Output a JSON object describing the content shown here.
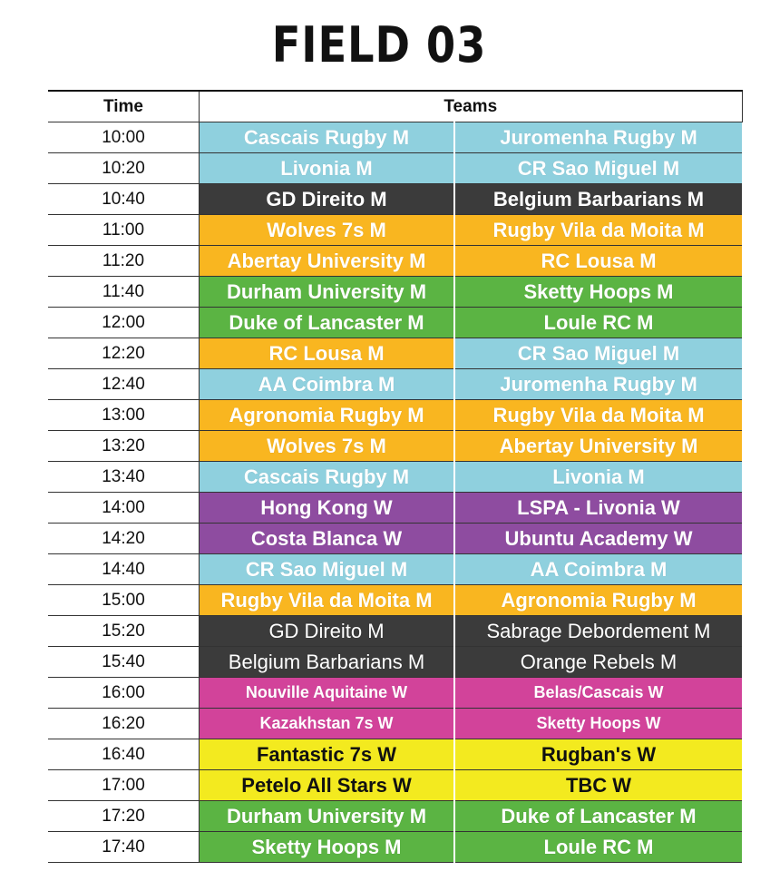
{
  "title": "FIELD 03",
  "headers": {
    "time": "Time",
    "teams": "Teams"
  },
  "colors": {
    "cyan": "#8fd0de",
    "dark": "#3b3b3b",
    "orange": "#f9b620",
    "green": "#5bb443",
    "purple": "#8e4ca0",
    "magenta": "#d2439a",
    "yellow": "#f3ea1f"
  },
  "rows": [
    {
      "time": "10:00",
      "team_a": "Cascais Rugby M",
      "team_b": "Juromenha Rugby M",
      "color": "cyan"
    },
    {
      "time": "10:20",
      "team_a": "Livonia M",
      "team_b": "CR Sao Miguel M",
      "color": "cyan"
    },
    {
      "time": "10:40",
      "team_a": "GD Direito M",
      "team_b": "Belgium Barbarians M",
      "color": "dark"
    },
    {
      "time": "11:00",
      "team_a": "Wolves 7s M",
      "team_b": "Rugby Vila da Moita M",
      "color": "orange"
    },
    {
      "time": "11:20",
      "team_a": "Abertay University M",
      "team_b": "RC Lousa M",
      "color": "orange"
    },
    {
      "time": "11:40",
      "team_a": "Durham University M",
      "team_b": "Sketty Hoops M",
      "color": "green"
    },
    {
      "time": "12:00",
      "team_a": "Duke of Lancaster M",
      "team_b": "Loule RC M",
      "color": "green"
    },
    {
      "time": "12:20",
      "team_a": "RC Lousa M",
      "team_b": "CR Sao Miguel M",
      "color": "orange",
      "color_b": "cyan"
    },
    {
      "time": "12:40",
      "team_a": "AA Coimbra M",
      "team_b": "Juromenha Rugby M",
      "color": "cyan"
    },
    {
      "time": "13:00",
      "team_a": "Agronomia Rugby M",
      "team_b": "Rugby Vila da Moita M",
      "color": "orange"
    },
    {
      "time": "13:20",
      "team_a": "Wolves 7s M",
      "team_b": "Abertay University M",
      "color": "orange"
    },
    {
      "time": "13:40",
      "team_a": "Cascais Rugby M",
      "team_b": "Livonia M",
      "color": "cyan"
    },
    {
      "time": "14:00",
      "team_a": "Hong Kong W",
      "team_b": "LSPA - Livonia W",
      "color": "purple"
    },
    {
      "time": "14:20",
      "team_a": "Costa Blanca W",
      "team_b": "Ubuntu Academy W",
      "color": "purple"
    },
    {
      "time": "14:40",
      "team_a": "CR Sao Miguel M",
      "team_b": "AA Coimbra M",
      "color": "cyan"
    },
    {
      "time": "15:00",
      "team_a": "Rugby Vila da Moita M",
      "team_b": "Agronomia Rugby M",
      "color": "orange"
    },
    {
      "time": "15:20",
      "team_a": "GD Direito M",
      "team_b": "Sabrage Debordement M",
      "color": "dark",
      "thin": true
    },
    {
      "time": "15:40",
      "team_a": "Belgium Barbarians M",
      "team_b": "Orange Rebels M",
      "color": "dark",
      "thin": true
    },
    {
      "time": "16:00",
      "team_a": "Nouville Aquitaine W",
      "team_b": "Belas/Cascais W",
      "color": "magenta",
      "small": true
    },
    {
      "time": "16:20",
      "team_a": "Kazakhstan 7s W",
      "team_b": "Sketty Hoops W",
      "color": "magenta",
      "small": true
    },
    {
      "time": "16:40",
      "team_a": "Fantastic 7s W",
      "team_b": "Rugban's W",
      "color": "yellow",
      "dark_text": true
    },
    {
      "time": "17:00",
      "team_a": "Petelo All Stars W",
      "team_b": "TBC W",
      "color": "yellow",
      "dark_text": true
    },
    {
      "time": "17:20",
      "team_a": "Durham University M",
      "team_b": "Duke of Lancaster M",
      "color": "green"
    },
    {
      "time": "17:40",
      "team_a": "Sketty Hoops M",
      "team_b": "Loule RC M",
      "color": "green"
    }
  ]
}
